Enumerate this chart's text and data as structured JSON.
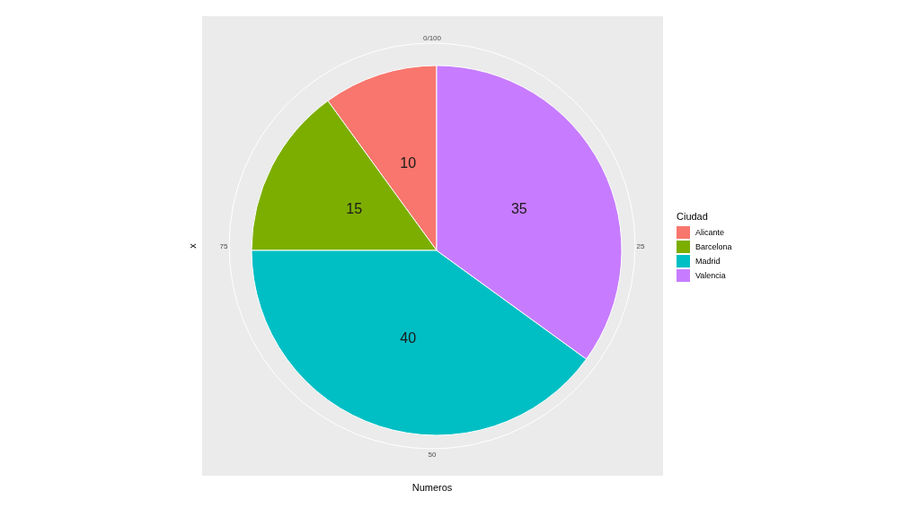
{
  "chart_data": {
    "type": "pie",
    "xlabel": "Numeros",
    "ylabel": "x",
    "legend_title": "Ciudad",
    "categories": [
      "Alicante",
      "Barcelona",
      "Madrid",
      "Valencia"
    ],
    "values": [
      10,
      15,
      40,
      35
    ],
    "colors": [
      "#f8766d",
      "#7cae00",
      "#00bfc4",
      "#c77cff"
    ],
    "annotations": [
      "0/100",
      "25",
      "50",
      "75"
    ],
    "data_labels": true,
    "legend": "right"
  }
}
